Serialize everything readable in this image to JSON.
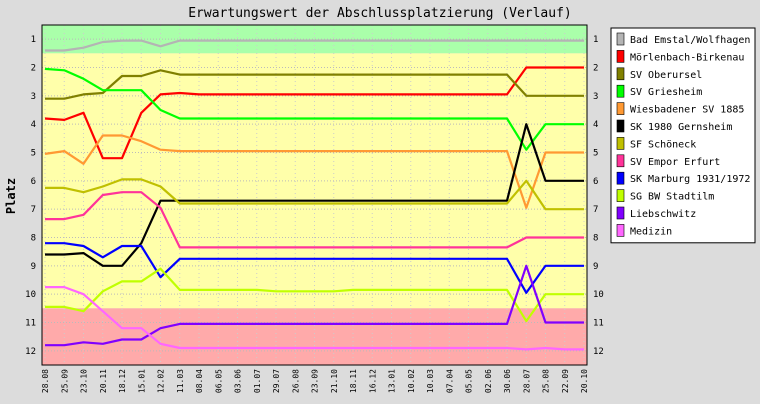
{
  "chart_data": {
    "type": "line",
    "title": "Erwartungswert der Abschlussplatzierung (Verlauf)",
    "ylabel": "Platz",
    "xlabel": "",
    "y_ticks": [
      1,
      2,
      3,
      4,
      5,
      6,
      7,
      8,
      9,
      10,
      11,
      12
    ],
    "ylim": [
      0.5,
      12.5
    ],
    "y_inverted": true,
    "grid": true,
    "legend_position": "right",
    "bands": [
      {
        "from": 0.5,
        "to": 1.5,
        "color": "#aaffaa"
      },
      {
        "from": 1.5,
        "to": 10.5,
        "color": "#ffffaa"
      },
      {
        "from": 10.5,
        "to": 12.5,
        "color": "#ffaaaa"
      }
    ],
    "x": [
      "28.08",
      "25.09",
      "23.10",
      "20.11",
      "18.12",
      "15.01",
      "12.02",
      "11.03",
      "08.04",
      "06.05",
      "03.06",
      "01.07",
      "29.07",
      "26.08",
      "23.09",
      "21.10",
      "18.11",
      "16.12",
      "13.01",
      "10.02",
      "10.03",
      "07.04",
      "05.05",
      "02.06",
      "30.06",
      "28.07",
      "25.08",
      "22.09",
      "20.10"
    ],
    "series": [
      {
        "name": "Bad Emstal/Wolfhagen",
        "color": "#b4b4b4",
        "values": [
          1.4,
          1.4,
          1.3,
          1.1,
          1.05,
          1.05,
          1.25,
          1.05,
          1.05,
          1.05,
          1.05,
          1.05,
          1.05,
          1.05,
          1.05,
          1.05,
          1.05,
          1.05,
          1.05,
          1.05,
          1.05,
          1.05,
          1.05,
          1.05,
          1.05,
          1.05,
          1.05,
          1.05,
          1.05
        ]
      },
      {
        "name": "Mörlenbach-Birkenau",
        "color": "#ff0000",
        "values": [
          3.8,
          3.85,
          3.6,
          5.2,
          5.2,
          3.6,
          2.95,
          2.9,
          2.95,
          2.95,
          2.95,
          2.95,
          2.95,
          2.95,
          2.95,
          2.95,
          2.95,
          2.95,
          2.95,
          2.95,
          2.95,
          2.95,
          2.95,
          2.95,
          2.95,
          2.0,
          2.0,
          2.0,
          2.0
        ]
      },
      {
        "name": "SV Oberursel",
        "color": "#808000",
        "values": [
          3.1,
          3.1,
          2.95,
          2.9,
          2.3,
          2.3,
          2.1,
          2.25,
          2.25,
          2.25,
          2.25,
          2.25,
          2.25,
          2.25,
          2.25,
          2.25,
          2.25,
          2.25,
          2.25,
          2.25,
          2.25,
          2.25,
          2.25,
          2.25,
          2.25,
          3.0,
          3.0,
          3.0,
          3.0
        ]
      },
      {
        "name": "SV Griesheim",
        "color": "#00ff00",
        "values": [
          2.05,
          2.1,
          2.4,
          2.8,
          2.8,
          2.8,
          3.5,
          3.8,
          3.8,
          3.8,
          3.8,
          3.8,
          3.8,
          3.8,
          3.8,
          3.8,
          3.8,
          3.8,
          3.8,
          3.8,
          3.8,
          3.8,
          3.8,
          3.8,
          3.8,
          4.9,
          4.0,
          4.0,
          4.0
        ]
      },
      {
        "name": "Wiesbadener SV 1885",
        "color": "#ff9933",
        "values": [
          5.05,
          4.95,
          5.4,
          4.4,
          4.4,
          4.6,
          4.9,
          4.95,
          4.95,
          4.95,
          4.95,
          4.95,
          4.95,
          4.95,
          4.95,
          4.95,
          4.95,
          4.95,
          4.95,
          4.95,
          4.95,
          4.95,
          4.95,
          4.95,
          4.95,
          6.95,
          5.0,
          5.0,
          5.0
        ]
      },
      {
        "name": "SK 1980 Gernsheim",
        "color": "#000000",
        "values": [
          8.6,
          8.6,
          8.55,
          9.0,
          9.0,
          8.2,
          6.7,
          6.7,
          6.7,
          6.7,
          6.7,
          6.7,
          6.7,
          6.7,
          6.7,
          6.7,
          6.7,
          6.7,
          6.7,
          6.7,
          6.7,
          6.7,
          6.7,
          6.7,
          6.7,
          4.0,
          6.0,
          6.0,
          6.0
        ]
      },
      {
        "name": "SF Schöneck",
        "color": "#c0c000",
        "values": [
          6.25,
          6.25,
          6.4,
          6.2,
          5.95,
          5.95,
          6.2,
          6.8,
          6.8,
          6.8,
          6.8,
          6.8,
          6.8,
          6.8,
          6.8,
          6.8,
          6.8,
          6.8,
          6.8,
          6.8,
          6.8,
          6.8,
          6.8,
          6.8,
          6.8,
          6.0,
          7.0,
          7.0,
          7.0
        ]
      },
      {
        "name": "SV Empor Erfurt",
        "color": "#ff3399",
        "values": [
          7.35,
          7.35,
          7.2,
          6.5,
          6.4,
          6.4,
          6.95,
          8.35,
          8.35,
          8.35,
          8.35,
          8.35,
          8.35,
          8.35,
          8.35,
          8.35,
          8.35,
          8.35,
          8.35,
          8.35,
          8.35,
          8.35,
          8.35,
          8.35,
          8.35,
          8.0,
          8.0,
          8.0,
          8.0
        ]
      },
      {
        "name": "SK Marburg 1931/1972",
        "color": "#0000ff",
        "values": [
          8.2,
          8.2,
          8.3,
          8.7,
          8.3,
          8.3,
          9.4,
          8.75,
          8.75,
          8.75,
          8.75,
          8.75,
          8.75,
          8.75,
          8.75,
          8.75,
          8.75,
          8.75,
          8.75,
          8.75,
          8.75,
          8.75,
          8.75,
          8.75,
          8.75,
          9.95,
          9.0,
          9.0,
          9.0
        ]
      },
      {
        "name": "SG BW Stadtilm",
        "color": "#c0ff00",
        "values": [
          10.45,
          10.45,
          10.6,
          9.9,
          9.55,
          9.55,
          9.1,
          9.85,
          9.85,
          9.85,
          9.85,
          9.85,
          9.9,
          9.9,
          9.9,
          9.9,
          9.85,
          9.85,
          9.85,
          9.85,
          9.85,
          9.85,
          9.85,
          9.85,
          9.85,
          10.95,
          10.0,
          10.0,
          10.0
        ]
      },
      {
        "name": "Liebschwitz",
        "color": "#8000ff",
        "values": [
          11.8,
          11.8,
          11.7,
          11.75,
          11.6,
          11.6,
          11.2,
          11.05,
          11.05,
          11.05,
          11.05,
          11.05,
          11.05,
          11.05,
          11.05,
          11.05,
          11.05,
          11.05,
          11.05,
          11.05,
          11.05,
          11.05,
          11.05,
          11.05,
          11.05,
          9.0,
          11.0,
          11.0,
          11.0
        ]
      },
      {
        "name": "Medizin",
        "color": "#ff66ff",
        "values": [
          9.75,
          9.75,
          10.0,
          10.6,
          11.2,
          11.2,
          11.75,
          11.9,
          11.9,
          11.9,
          11.9,
          11.9,
          11.9,
          11.9,
          11.9,
          11.9,
          11.9,
          11.9,
          11.9,
          11.9,
          11.9,
          11.9,
          11.9,
          11.9,
          11.9,
          11.95,
          11.9,
          11.95,
          11.95
        ]
      }
    ]
  }
}
